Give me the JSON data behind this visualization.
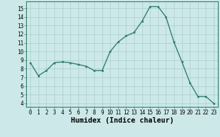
{
  "x": [
    0,
    1,
    2,
    3,
    4,
    5,
    6,
    7,
    8,
    9,
    10,
    11,
    12,
    13,
    14,
    15,
    16,
    17,
    18,
    19,
    20,
    21,
    22,
    23
  ],
  "y": [
    8.7,
    7.2,
    7.8,
    8.7,
    8.8,
    8.7,
    8.5,
    8.3,
    7.8,
    7.8,
    10.0,
    11.1,
    11.8,
    12.2,
    13.5,
    15.2,
    15.2,
    14.0,
    11.1,
    8.8,
    6.4,
    4.8,
    4.8,
    4.0
  ],
  "line_color": "#2e7d6e",
  "marker": "s",
  "marker_size": 2.0,
  "xlabel": "Humidex (Indice chaleur)",
  "xlim": [
    -0.5,
    23.5
  ],
  "ylim": [
    3.6,
    15.8
  ],
  "yticks": [
    4,
    5,
    6,
    7,
    8,
    9,
    10,
    11,
    12,
    13,
    14,
    15
  ],
  "xticks": [
    0,
    1,
    2,
    3,
    4,
    5,
    6,
    7,
    8,
    9,
    10,
    11,
    12,
    13,
    14,
    15,
    16,
    17,
    18,
    19,
    20,
    21,
    22,
    23
  ],
  "bg_color": "#cce8e8",
  "grid_color": "#aacccc",
  "tick_fontsize": 5.5,
  "xlabel_fontsize": 7.5,
  "line_width": 1.0
}
